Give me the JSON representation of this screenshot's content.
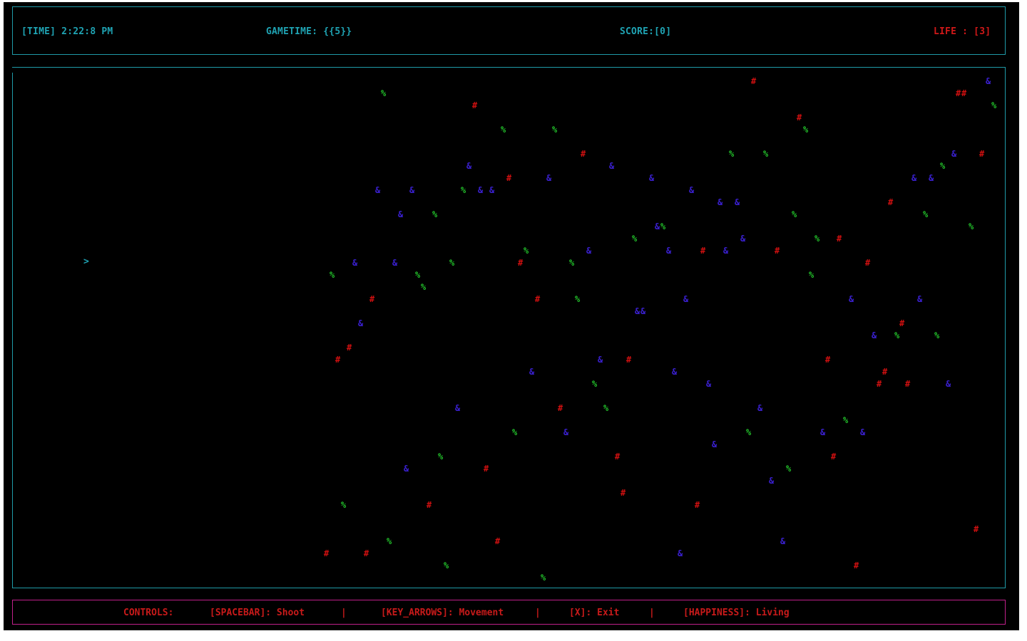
{
  "hud": {
    "time": "[TIME] 2:22:8 PM",
    "gametime": "GAMETIME: {{5}}",
    "score": "SCORE:[0]",
    "life": "LIFE : [3]"
  },
  "player": {
    "glyph": ">"
  },
  "controls": {
    "label": "CONTROLS:",
    "shoot": "[SPACEBAR]: Shoot",
    "sep1": "|",
    "movement": "[KEY_ARROWS]: Movement",
    "sep2": "|",
    "exit": "[X]: Exit",
    "sep3": "|",
    "happiness": "[HAPPINESS]: Living"
  },
  "colors": {
    "background": "#000000",
    "hud_text": "#1fa3b3",
    "life_text": "#d01818",
    "border_cyan": "#1f9aa8",
    "border_magenta": "#c0208a",
    "controls_text": "#c81a1a",
    "hash": "#d01010",
    "percent": "#22c02a",
    "ampersand": "#3a20d0",
    "player": "#1fa3b3"
  },
  "entity_glyphs": {
    "hash": "#",
    "percent": "%",
    "ampersand": "&"
  }
}
